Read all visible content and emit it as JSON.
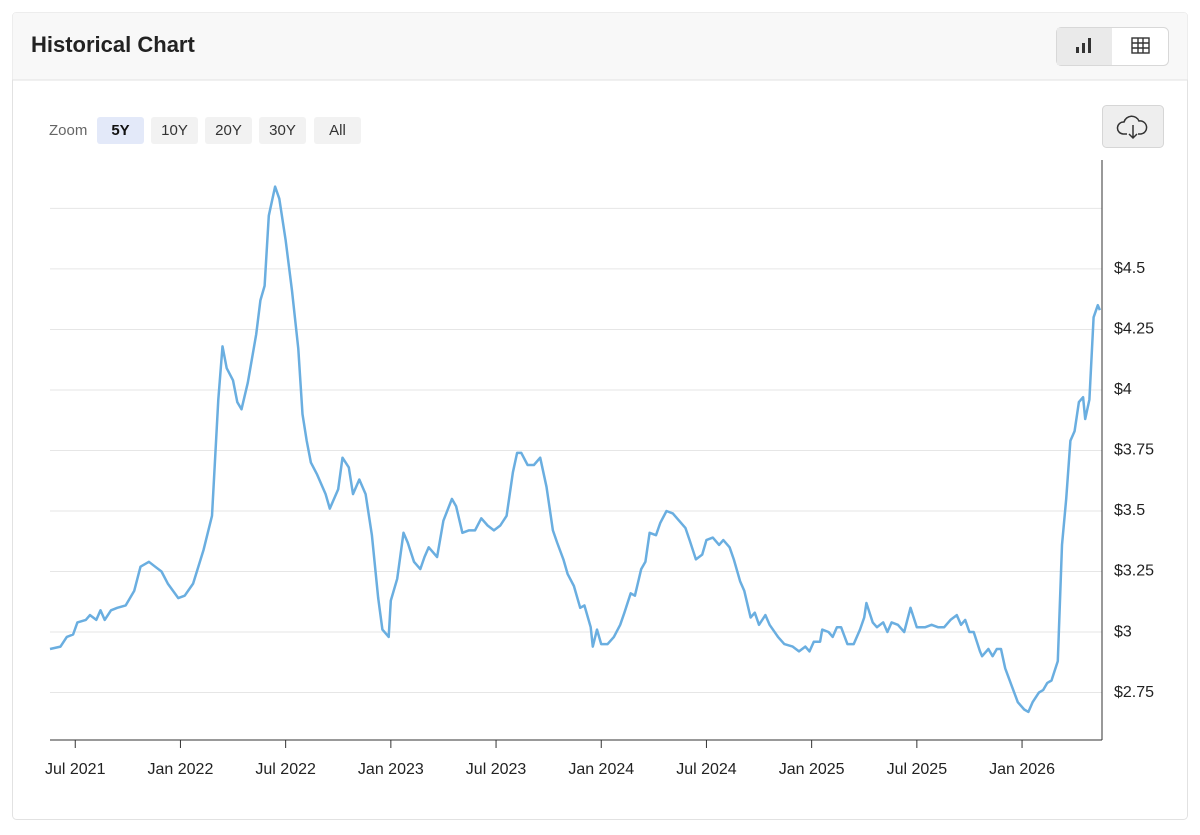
{
  "header": {
    "title": "Historical Chart"
  },
  "zoom": {
    "label": "Zoom",
    "options": [
      "5Y",
      "10Y",
      "20Y",
      "30Y",
      "All"
    ],
    "selected": 0
  },
  "chart_data": {
    "type": "line",
    "color": "#6aaee0",
    "x": [
      2021.38,
      2021.43,
      2021.46,
      2021.49,
      2021.51,
      2021.55,
      2021.57,
      2021.6,
      2021.62,
      2021.64,
      2021.67,
      2021.7,
      2021.74,
      2021.78,
      2021.81,
      2021.85,
      2021.88,
      2021.91,
      2021.94,
      2021.99,
      2022.02,
      2022.06,
      2022.11,
      2022.15,
      2022.18,
      2022.2,
      2022.22,
      2022.25,
      2022.27,
      2022.29,
      2022.32,
      2022.36,
      2022.38,
      2022.4,
      2022.42,
      2022.45,
      2022.47,
      2022.5,
      2022.53,
      2022.56,
      2022.58,
      2022.6,
      2022.62,
      2022.65,
      2022.69,
      2022.71,
      2022.75,
      2022.77,
      2022.8,
      2022.82,
      2022.85,
      2022.88,
      2022.91,
      2022.94,
      2022.96,
      2022.99,
      2023.0,
      2023.03,
      2023.06,
      2023.08,
      2023.11,
      2023.14,
      2023.16,
      2023.18,
      2023.22,
      2023.25,
      2023.29,
      2023.31,
      2023.34,
      2023.37,
      2023.4,
      2023.43,
      2023.46,
      2023.49,
      2023.52,
      2023.55,
      2023.58,
      2023.6,
      2023.62,
      2023.65,
      2023.68,
      2023.71,
      2023.74,
      2023.77,
      2023.79,
      2023.82,
      2023.84,
      2023.87,
      2023.9,
      2023.92,
      2023.95,
      2023.96,
      2023.98,
      2024.0,
      2024.03,
      2024.06,
      2024.09,
      2024.11,
      2024.14,
      2024.16,
      2024.19,
      2024.21,
      2024.23,
      2024.26,
      2024.28,
      2024.31,
      2024.34,
      2024.37,
      2024.4,
      2024.42,
      2024.45,
      2024.48,
      2024.5,
      2024.53,
      2024.56,
      2024.58,
      2024.61,
      2024.63,
      2024.66,
      2024.68,
      2024.71,
      2024.73,
      2024.75,
      2024.78,
      2024.8,
      2024.84,
      2024.87,
      2024.91,
      2024.94,
      2024.97,
      2024.99,
      2025.01,
      2025.04,
      2025.05,
      2025.08,
      2025.1,
      2025.12,
      2025.14,
      2025.17,
      2025.2,
      2025.23,
      2025.25,
      2025.26,
      2025.29,
      2025.31,
      2025.34,
      2025.36,
      2025.38,
      2025.41,
      2025.44,
      2025.47,
      2025.5,
      2025.54,
      2025.57,
      2025.6,
      2025.63,
      2025.66,
      2025.69,
      2025.71,
      2025.73,
      2025.75,
      2025.77,
      2025.8,
      2025.81,
      2025.84,
      2025.86,
      2025.88,
      2025.9,
      2025.92,
      2025.95,
      2025.98,
      2026.01,
      2026.03,
      2026.05,
      2026.08,
      2026.1,
      2026.12,
      2026.14,
      2026.17,
      2026.19,
      2026.21,
      2026.23,
      2026.25,
      2026.27,
      2026.29,
      2026.3,
      2026.32,
      2026.34,
      2026.36,
      2026.37
    ],
    "values": [
      2.93,
      2.94,
      2.98,
      2.99,
      3.04,
      3.05,
      3.07,
      3.05,
      3.09,
      3.05,
      3.09,
      3.1,
      3.11,
      3.17,
      3.27,
      3.29,
      3.27,
      3.25,
      3.2,
      3.14,
      3.15,
      3.2,
      3.34,
      3.48,
      3.96,
      4.18,
      4.09,
      4.04,
      3.95,
      3.92,
      4.03,
      4.23,
      4.37,
      4.43,
      4.72,
      4.84,
      4.79,
      4.62,
      4.41,
      4.17,
      3.9,
      3.79,
      3.7,
      3.65,
      3.57,
      3.51,
      3.59,
      3.72,
      3.68,
      3.57,
      3.63,
      3.57,
      3.4,
      3.14,
      3.01,
      2.98,
      3.13,
      3.22,
      3.41,
      3.37,
      3.29,
      3.26,
      3.31,
      3.35,
      3.31,
      3.46,
      3.55,
      3.52,
      3.41,
      3.42,
      3.42,
      3.47,
      3.44,
      3.42,
      3.44,
      3.48,
      3.66,
      3.74,
      3.74,
      3.69,
      3.69,
      3.72,
      3.6,
      3.42,
      3.37,
      3.3,
      3.24,
      3.19,
      3.1,
      3.11,
      3.02,
      2.94,
      3.01,
      2.95,
      2.95,
      2.98,
      3.03,
      3.08,
      3.16,
      3.15,
      3.26,
      3.29,
      3.41,
      3.4,
      3.45,
      3.5,
      3.49,
      3.46,
      3.43,
      3.38,
      3.3,
      3.32,
      3.38,
      3.39,
      3.36,
      3.38,
      3.35,
      3.3,
      3.21,
      3.17,
      3.06,
      3.08,
      3.03,
      3.07,
      3.03,
      2.98,
      2.95,
      2.94,
      2.92,
      2.94,
      2.92,
      2.96,
      2.96,
      3.01,
      3.0,
      2.98,
      3.02,
      3.02,
      2.95,
      2.95,
      3.01,
      3.06,
      3.12,
      3.04,
      3.02,
      3.04,
      3.0,
      3.04,
      3.03,
      3.0,
      3.1,
      3.02,
      3.02,
      3.03,
      3.02,
      3.02,
      3.05,
      3.07,
      3.03,
      3.05,
      3.0,
      3.0,
      2.92,
      2.9,
      2.93,
      2.9,
      2.93,
      2.93,
      2.85,
      2.78,
      2.71,
      2.68,
      2.67,
      2.71,
      2.75,
      2.76,
      2.79,
      2.8,
      2.88,
      3.36,
      3.55,
      3.79,
      3.83,
      3.95,
      3.97,
      3.88,
      3.96,
      4.3,
      4.35,
      4.33
    ],
    "xlim": [
      2021.38,
      2026.38
    ],
    "xticks": [
      {
        "value": 2021.5,
        "label": "Jul 2021"
      },
      {
        "value": 2022.0,
        "label": "Jan 2022"
      },
      {
        "value": 2022.5,
        "label": "Jul 2022"
      },
      {
        "value": 2023.0,
        "label": "Jan 2023"
      },
      {
        "value": 2023.5,
        "label": "Jul 2023"
      },
      {
        "value": 2024.0,
        "label": "Jan 2024"
      },
      {
        "value": 2024.5,
        "label": "Jul 2024"
      },
      {
        "value": 2025.0,
        "label": "Jan 2025"
      },
      {
        "value": 2025.5,
        "label": "Jul 2025"
      },
      {
        "value": 2026.0,
        "label": "Jan 2026"
      }
    ],
    "ylim": [
      2.554,
      4.95
    ],
    "yticks": [
      {
        "value": 2.75,
        "label": "$2.75"
      },
      {
        "value": 3,
        "label": "$3"
      },
      {
        "value": 3.25,
        "label": "$3.25"
      },
      {
        "value": 3.5,
        "label": "$3.5"
      },
      {
        "value": 3.75,
        "label": "$3.75"
      },
      {
        "value": 4,
        "label": "$4"
      },
      {
        "value": 4.25,
        "label": "$4.25"
      },
      {
        "value": 4.5,
        "label": "$4.5"
      }
    ],
    "ygrid_only": [
      4.75
    ],
    "grid": true
  }
}
